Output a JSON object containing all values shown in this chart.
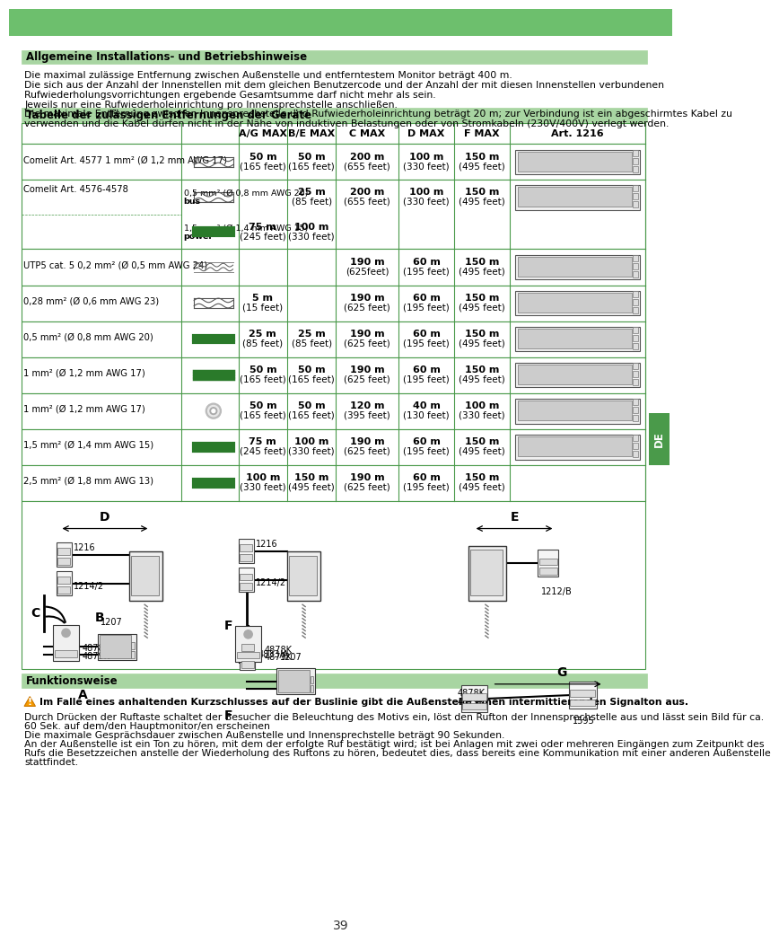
{
  "page_bg": "#ffffff",
  "green_header_bg": "#7dc47a",
  "section_header_bg": "#a8d5a2",
  "table_border": "#4a9a4a",
  "body_text_color": "#000000",
  "right_tab_bg": "#4a9a4a",
  "right_tab_text": "#ffffff",
  "page_number": "39",
  "section1_title": "Allgemeine Installations- und Betriebshinweise",
  "section1_lines": [
    "Die maximal zulässige Entfernung zwischen Außenstelle und entferntestem Monitor beträgt 400 m.",
    "Die sich aus der Anzahl der Innenstellen mit dem gleichen Benutzercode und der Anzahl der mit diesen Innenstellen verbundenen Rufwiederholungsvorrichtungen ergebende Gesamtsumme darf nicht mehr als sein.",
    "Jeweils nur eine Rufwiederholeinrichtung pro Innensprechstelle anschließen.",
    "Die maximale Entfernung zwischen Innensprechstelle und Rufwiederholeinrichtung beträgt 20 m; zur Verbindung ist ein abgeschirmtes Kabel zu verwenden und die Kabel dürfen nicht in der Nähe von induktiven Belastungen oder von Stromkabeln (230V/400V) verlegt werden."
  ],
  "section2_title": "Tabelle der zulässigen Entfernungen der Geräte",
  "col_headers": [
    "A/G MAX",
    "B/E MAX",
    "C MAX",
    "D MAX",
    "F MAX",
    "Art. 1216"
  ],
  "section3_title": "Funktionsweise",
  "warning_text": "Im Falle eines anhaltenden Kurzschlusses auf der Buslinie gibt die Außenstelle einen intermittierenden Signalton aus.",
  "section3_lines": [
    "Durch Drücken der Ruftaste schaltet der Besucher die Beleuchtung des Motivs ein, löst den Rufton der Innensprechstelle aus und lässt sein Bild für ca. 60 Sek. auf dem/den Hauptmonitor/en erscheinen",
    "Die maximale Gesprächsdauer zwischen Außenstelle und Innensprechstelle beträgt 90 Sekunden.",
    "An der Außenstelle ist ein Ton zu hören, mit dem der erfolgte Ruf bestätigt wird; ist bei Anlagen mit zwei oder mehreren Eingängen zum Zeitpunkt des Rufs die Besetzzeichen anstelle der Wiederholung des Ruftons zu hören, bedeutet dies, dass bereits eine Kommunikation mit einer anderen Außenstelle stattfindet."
  ]
}
